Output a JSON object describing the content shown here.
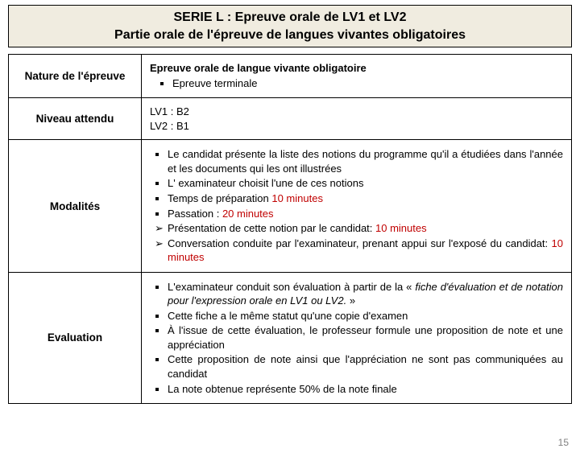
{
  "header": {
    "line1": "SERIE L : Epreuve orale de LV1 et LV2",
    "line2": "Partie orale de l'épreuve de langues vivantes obligatoires"
  },
  "rows": {
    "nature": {
      "label": "Nature de l'épreuve",
      "title": "Epreuve orale de langue vivante obligatoire",
      "bullet": "Epreuve terminale"
    },
    "niveau": {
      "label": "Niveau attendu",
      "line1": "LV1 : B2",
      "line2": "LV2 : B1"
    },
    "modalites": {
      "label": "Modalités",
      "b1": "Le candidat présente la liste des notions du programme qu'il a étudiées dans l'année et les documents qui les ont illustrées",
      "b2": "L' examinateur choisit l'une de ces notions",
      "b3a": "Temps de préparation ",
      "b3b": "10 minutes",
      "b4a": "Passation :  ",
      "b4b": "20 minutes",
      "a1a": "Présentation de cette notion par le candidat: ",
      "a1b": "10 minutes",
      "a2a": "Conversation conduite par l'examinateur, prenant appui sur l'exposé du candidat: ",
      "a2b": "10 minutes"
    },
    "evaluation": {
      "label": "Evaluation",
      "b1a": "L'examinateur conduit son évaluation à partir de la « ",
      "b1b": "fiche d'évaluation et de notation pour l'expression orale en LV1 ou LV2.",
      "b1c": " »",
      "b2": "Cette fiche a le même statut qu'une copie d'examen",
      "b3": "À l'issue de cette évaluation, le professeur formule une proposition de note et une appréciation",
      "b4": "Cette proposition de note ainsi que l'appréciation ne sont pas communiquées au candidat",
      "b5": "La note obtenue représente 50% de la note finale"
    }
  },
  "pagenum": "15",
  "colors": {
    "header_bg": "#f0ece0",
    "border": "#000000",
    "red": "#c00000",
    "pagenum": "#808080"
  }
}
